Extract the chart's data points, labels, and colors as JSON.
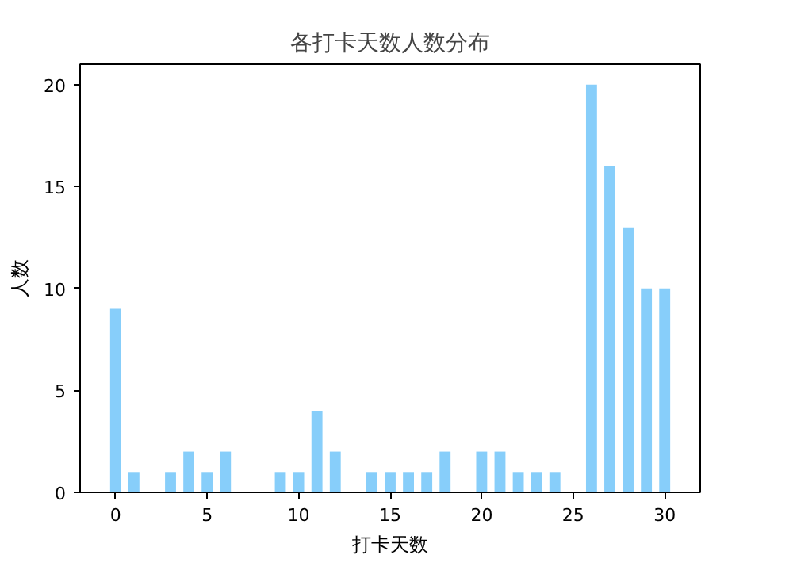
{
  "chart_data": {
    "type": "bar",
    "title": "各打卡天数人数分布",
    "xlabel": "打卡天数",
    "ylabel": "人数",
    "x": [
      0,
      1,
      2,
      3,
      4,
      5,
      6,
      7,
      8,
      9,
      10,
      11,
      12,
      13,
      14,
      15,
      16,
      17,
      18,
      19,
      20,
      21,
      22,
      23,
      24,
      25,
      26,
      27,
      28,
      29,
      30
    ],
    "values": [
      9,
      1,
      0,
      1,
      2,
      1,
      2,
      0,
      0,
      1,
      1,
      4,
      2,
      0,
      1,
      1,
      1,
      1,
      2,
      0,
      2,
      2,
      1,
      1,
      1,
      0,
      20,
      16,
      13,
      10,
      10
    ],
    "color": "#87cefa",
    "xlim": [
      -1.94,
      31.94
    ],
    "xticks": [
      0,
      5,
      10,
      15,
      20,
      25,
      30
    ],
    "ylim": [
      0,
      21
    ],
    "yticks": [
      0,
      5,
      10,
      15,
      20
    ],
    "grid": false
  }
}
